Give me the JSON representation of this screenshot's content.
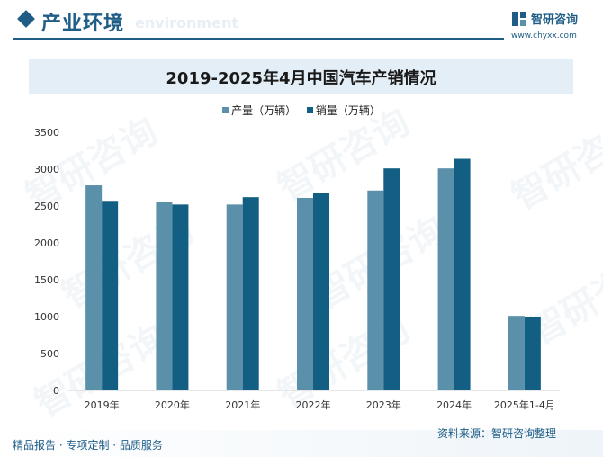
{
  "header": {
    "section_title": "产业环境",
    "section_sub": "environment",
    "logo_name": "智研咨询",
    "logo_url": "www.chyxx.com"
  },
  "footer": {
    "left": "精品报告 · 专项定制 · 品质服务",
    "source": "资料来源：智研咨询整理"
  },
  "watermark": "智研咨询",
  "colors": {
    "production": "#5b90ab",
    "sales": "#135f84",
    "brand": "#1f5d86"
  },
  "chart_data": {
    "type": "bar",
    "title": "2019-2025年4月中国汽车产销情况",
    "categories": [
      "2019年",
      "2020年",
      "2021年",
      "2022年",
      "2023年",
      "2024年",
      "2025年1-4月"
    ],
    "series": [
      {
        "name": "产量（万辆）",
        "values": [
          2780,
          2550,
          2520,
          2610,
          2710,
          3010,
          1010
        ]
      },
      {
        "name": "销量（万辆）",
        "values": [
          2570,
          2520,
          2620,
          2680,
          3010,
          3140,
          1000
        ]
      }
    ],
    "yticks": [
      "0",
      "500",
      "1000",
      "1500",
      "2000",
      "2500",
      "3000",
      "3500"
    ],
    "ylim": [
      0,
      3500
    ],
    "grid": false,
    "legend_position": "top-center"
  }
}
